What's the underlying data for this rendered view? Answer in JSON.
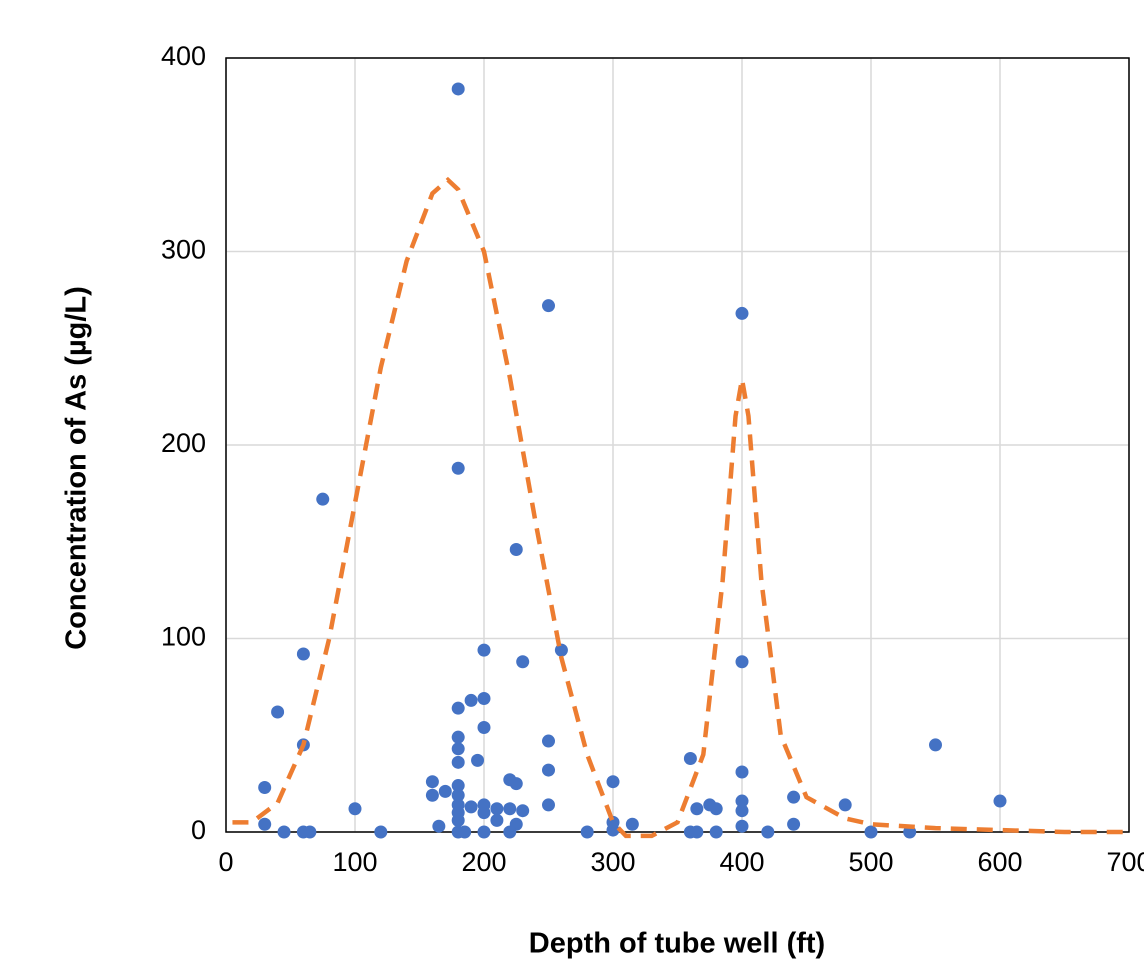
{
  "chart_data": {
    "type": "scatter",
    "xlabel": "Depth of tube well (ft)",
    "ylabel": "Concentration of As (µg/L)",
    "xlim": [
      0,
      700
    ],
    "ylim": [
      0,
      400
    ],
    "xticks": [
      0,
      100,
      200,
      300,
      400,
      500,
      600,
      700
    ],
    "yticks": [
      0,
      100,
      200,
      300,
      400
    ],
    "grid": true,
    "series": [
      {
        "color": "#4472c4",
        "x": [
          180,
          250,
          400,
          180,
          75,
          225,
          60,
          200,
          230,
          260,
          400,
          40,
          180,
          190,
          200,
          200,
          180,
          180,
          60,
          250,
          550,
          195,
          180,
          360,
          400,
          250,
          30,
          160,
          300,
          220,
          225,
          180,
          170,
          160,
          180,
          440,
          600,
          400,
          180,
          190,
          200,
          210,
          220,
          250,
          375,
          380,
          365,
          480,
          100,
          180,
          200,
          230,
          400,
          30,
          165,
          180,
          210,
          225,
          300,
          315,
          440,
          400,
          45,
          60,
          65,
          120,
          180,
          185,
          200,
          220,
          280,
          300,
          360,
          365,
          380,
          420,
          500,
          530
        ],
        "values": [
          384,
          272,
          268,
          188,
          172,
          146,
          92,
          94,
          88,
          94,
          88,
          62,
          64,
          68,
          69,
          54,
          49,
          43,
          45,
          47,
          45,
          37,
          36,
          38,
          31,
          32,
          23,
          26,
          26,
          27,
          25,
          24,
          21,
          19,
          19,
          18,
          16,
          16,
          14,
          13,
          14,
          12,
          12,
          14,
          14,
          12,
          12,
          14,
          12,
          10,
          10,
          11,
          11,
          4,
          3,
          6,
          6,
          4,
          5,
          4,
          4,
          3,
          0,
          0,
          0,
          0,
          0,
          0,
          0,
          0,
          0,
          1,
          0,
          0,
          0,
          0,
          0,
          0
        ]
      },
      {
        "color": "#ed7d31",
        "style": "dashed",
        "x": [
          5,
          20,
          40,
          60,
          80,
          100,
          120,
          140,
          160,
          172,
          180,
          200,
          220,
          240,
          260,
          280,
          300,
          310,
          330,
          350,
          370,
          385,
          395,
          400,
          405,
          415,
          430,
          450,
          480,
          500,
          550,
          600,
          650,
          700
        ],
        "values": [
          5,
          5,
          15,
          45,
          100,
          170,
          240,
          295,
          330,
          337,
          332,
          300,
          235,
          160,
          90,
          40,
          5,
          -2,
          -2,
          5,
          40,
          130,
          215,
          234,
          215,
          130,
          50,
          18,
          7,
          4,
          2,
          1,
          0,
          0
        ]
      }
    ]
  }
}
